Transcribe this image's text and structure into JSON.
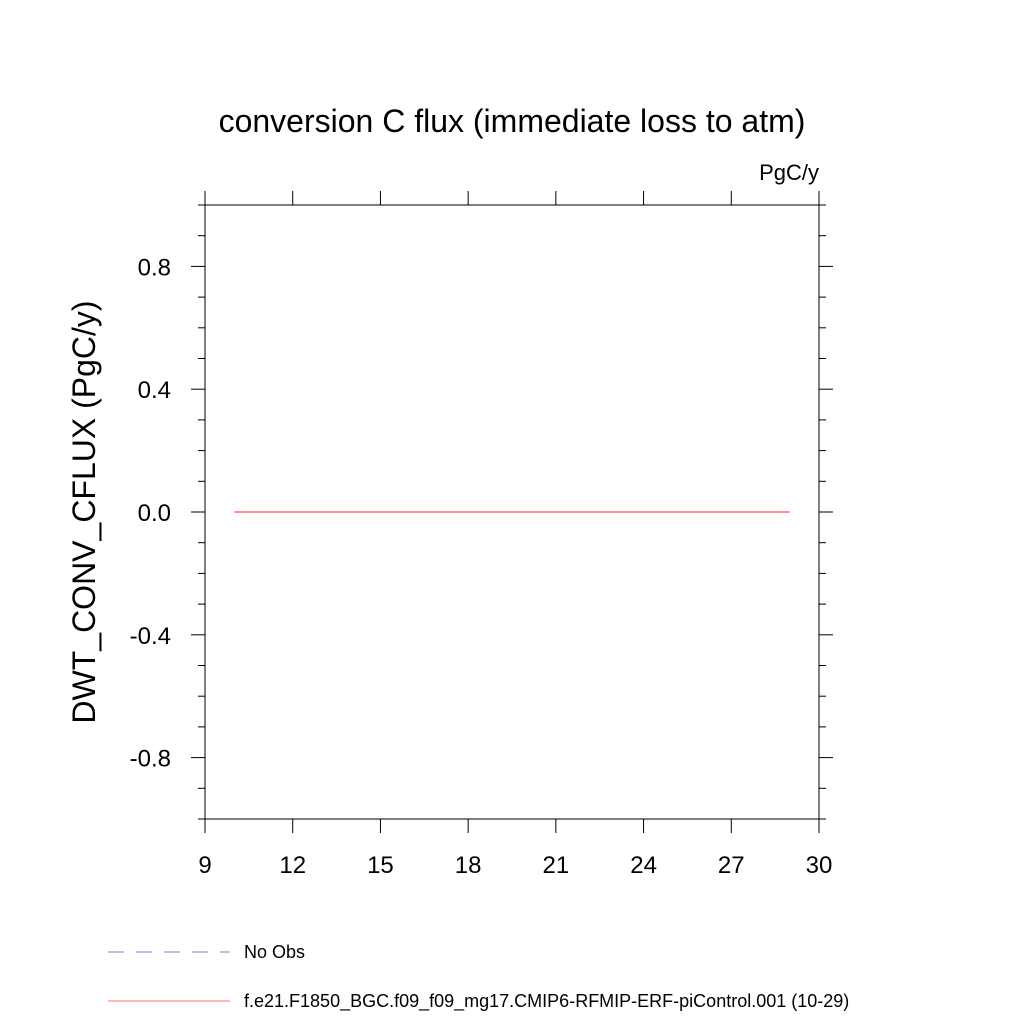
{
  "chart_data": {
    "type": "line",
    "title": "conversion C flux (immediate loss to atm)",
    "units": "PgC/y",
    "xlabel": "",
    "ylabel": "DWT_CONV_CFLUX  (PgC/y)",
    "xlim": [
      9,
      30
    ],
    "ylim": [
      -1,
      1
    ],
    "x_ticks": [
      9,
      12,
      15,
      18,
      21,
      24,
      27,
      30
    ],
    "x_tick_labels": [
      "9",
      "12",
      "15",
      "18",
      "21",
      "24",
      "27",
      "30"
    ],
    "y_ticks": [
      -0.8,
      -0.4,
      0.0,
      0.4,
      0.8
    ],
    "y_tick_labels": [
      "-0.8",
      "-0.4",
      "0.0",
      "0.4",
      "0.8"
    ],
    "grid": false,
    "legend_position": "bottom",
    "series": [
      {
        "name": "f.e21.F1850_BGC.f09_f09_mg17.CMIP6-RFMIP-ERF-piControl.001 (10-29)",
        "color": "#ff6f6f",
        "style": "solid",
        "x": [
          10,
          11,
          12,
          13,
          14,
          15,
          16,
          17,
          18,
          19,
          20,
          21,
          22,
          23,
          24,
          25,
          26,
          27,
          28,
          29
        ],
        "values": [
          0,
          0,
          0,
          0,
          0,
          0,
          0,
          0,
          0,
          0,
          0,
          0,
          0,
          0,
          0,
          0,
          0,
          0,
          0,
          0
        ]
      }
    ],
    "legend": [
      {
        "label": "No Obs",
        "color": "#8a7fd6",
        "style": "dashed"
      },
      {
        "label": "f.e21.F1850_BGC.f09_f09_mg17.CMIP6-RFMIP-ERF-piControl.001 (10-29)",
        "color": "#ff6f6f",
        "style": "solid"
      }
    ]
  }
}
